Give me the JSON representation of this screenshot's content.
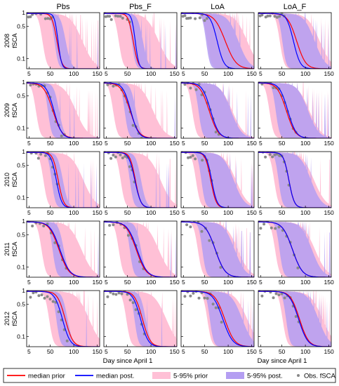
{
  "chart_data": {
    "type": "line",
    "columns": [
      "Pbs",
      "Pbs_F",
      "LoA",
      "LoA_F"
    ],
    "rows": [
      {
        "year": "2008",
        "ylabel": "fSCA"
      },
      {
        "year": "2009",
        "ylabel": "fSCA"
      },
      {
        "year": "2010",
        "ylabel": "fSCA"
      },
      {
        "year": "2011",
        "ylabel": "fSCA"
      },
      {
        "year": "2012",
        "ylabel": "fSCA"
      }
    ],
    "xlabel": "Day since April 1",
    "x_ticks": [
      "5",
      "50",
      "100",
      "150"
    ],
    "y_ticks": [
      "1",
      "0.5",
      "0.1"
    ],
    "y_scale": "log",
    "xlim": [
      0,
      155
    ],
    "ylim": [
      0.06,
      1.0
    ],
    "colors": {
      "prior": "#ff0000",
      "posterior": "#0000ff",
      "prior_band": "#ffc0d6",
      "posterior_band": "#b49ef2",
      "obs": "#888888"
    },
    "panels": [
      {
        "row": 0,
        "col": 0,
        "prior_melt": 58,
        "post_melt": 62,
        "prior_steep": 0.22,
        "post_steep": 0.3,
        "band_prior": "wide",
        "band_post": "narrow",
        "obs_days": [
          4,
          8,
          12,
          16,
          20,
          25,
          30,
          35,
          40,
          45,
          50,
          55
        ]
      },
      {
        "row": 0,
        "col": 1,
        "prior_melt": 56,
        "post_melt": 62,
        "prior_steep": 0.22,
        "post_steep": 0.3,
        "band_prior": "wide",
        "band_post": "narrow",
        "obs_days": [
          4,
          8,
          12,
          16,
          20,
          25,
          30,
          35,
          40,
          45,
          50,
          55
        ]
      },
      {
        "row": 0,
        "col": 2,
        "prior_melt": 80,
        "post_melt": 68,
        "prior_steep": 0.1,
        "post_steep": 0.16,
        "band_prior": "wide",
        "band_post": "wide",
        "obs_days": [
          4,
          8,
          12,
          16,
          20,
          25,
          30,
          35,
          40,
          45,
          50,
          55
        ]
      },
      {
        "row": 0,
        "col": 3,
        "prior_melt": 70,
        "post_melt": 66,
        "prior_steep": 0.12,
        "post_steep": 0.16,
        "band_prior": "wide",
        "band_post": "wide",
        "obs_days": [
          4,
          8,
          12,
          16,
          20,
          25,
          30,
          35,
          40,
          45,
          50,
          55
        ]
      },
      {
        "row": 1,
        "col": 0,
        "prior_melt": 44,
        "post_melt": 48,
        "prior_steep": 0.12,
        "post_steep": 0.14,
        "band_prior": "wide",
        "band_post": "narrow",
        "obs_days": [
          8,
          14,
          20,
          26,
          32,
          38,
          44,
          50,
          56,
          62,
          68,
          74,
          80
        ]
      },
      {
        "row": 1,
        "col": 1,
        "prior_melt": 44,
        "post_melt": 47,
        "prior_steep": 0.12,
        "post_steep": 0.14,
        "band_prior": "wide",
        "band_post": "narrow",
        "obs_days": [
          8,
          14,
          20,
          26,
          32,
          38,
          44,
          50,
          56,
          62,
          68,
          74,
          80
        ]
      },
      {
        "row": 1,
        "col": 2,
        "prior_melt": 48,
        "post_melt": 52,
        "prior_steep": 0.12,
        "post_steep": 0.13,
        "band_prior": "wide",
        "band_post": "wide",
        "obs_days": [
          8,
          14,
          20,
          26,
          32,
          38,
          44,
          50,
          56,
          62,
          68,
          74,
          80
        ]
      },
      {
        "row": 1,
        "col": 3,
        "prior_melt": 48,
        "post_melt": 52,
        "prior_steep": 0.12,
        "post_steep": 0.13,
        "band_prior": "wide",
        "band_post": "wide",
        "obs_days": [
          8,
          14,
          20,
          26,
          32,
          38,
          44,
          50,
          56,
          62,
          68,
          74,
          80
        ]
      },
      {
        "row": 2,
        "col": 0,
        "prior_melt": 60,
        "post_melt": 56,
        "prior_steep": 0.2,
        "post_steep": 0.2,
        "band_prior": "wide",
        "band_post": "narrow",
        "obs_days": [
          10,
          15,
          20,
          25,
          30,
          35,
          40,
          45,
          50,
          55,
          60,
          65
        ]
      },
      {
        "row": 2,
        "col": 1,
        "prior_melt": 60,
        "post_melt": 58,
        "prior_steep": 0.2,
        "post_steep": 0.18,
        "band_prior": "wide",
        "band_post": "narrow",
        "obs_days": [
          10,
          15,
          20,
          25,
          30,
          35,
          40,
          45,
          50,
          55,
          60,
          65
        ]
      },
      {
        "row": 2,
        "col": 2,
        "prior_melt": 56,
        "post_melt": 58,
        "prior_steep": 0.2,
        "post_steep": 0.2,
        "band_prior": "wide",
        "band_post": "wide",
        "obs_days": [
          10,
          15,
          20,
          25,
          30,
          35,
          40,
          45,
          50,
          55,
          60,
          65
        ]
      },
      {
        "row": 2,
        "col": 3,
        "prior_melt": 58,
        "post_melt": 58,
        "prior_steep": 0.2,
        "post_steep": 0.2,
        "band_prior": "wide",
        "band_post": "wide",
        "obs_days": [
          10,
          15,
          20,
          25,
          30,
          35,
          40,
          45,
          50,
          55,
          60,
          65
        ]
      },
      {
        "row": 3,
        "col": 0,
        "prior_melt": 56,
        "post_melt": 58,
        "prior_steep": 0.11,
        "post_steep": 0.11,
        "band_prior": "wide",
        "band_post": "narrow",
        "obs_days": [
          5,
          12,
          20,
          28,
          36,
          44,
          52,
          60,
          68,
          76,
          84
        ]
      },
      {
        "row": 3,
        "col": 1,
        "prior_melt": 56,
        "post_melt": 58,
        "prior_steep": 0.11,
        "post_steep": 0.11,
        "band_prior": "wide",
        "band_post": "narrow",
        "obs_days": [
          5,
          12,
          20,
          28,
          36,
          44,
          52,
          60,
          68,
          76,
          84
        ]
      },
      {
        "row": 3,
        "col": 2,
        "prior_melt": 60,
        "post_melt": 60,
        "prior_steep": 0.11,
        "post_steep": 0.11,
        "band_prior": "wide",
        "band_post": "wide",
        "obs_days": [
          5,
          12,
          20,
          28,
          36,
          44,
          52,
          60,
          68,
          76,
          84
        ]
      },
      {
        "row": 3,
        "col": 3,
        "prior_melt": 60,
        "post_melt": 60,
        "prior_steep": 0.11,
        "post_steep": 0.11,
        "band_prior": "wide",
        "band_post": "wide",
        "obs_days": [
          5,
          12,
          20,
          28,
          36,
          44,
          52,
          60,
          68,
          76,
          84
        ]
      },
      {
        "row": 4,
        "col": 0,
        "prior_melt": 72,
        "post_melt": 66,
        "prior_steep": 0.14,
        "post_steep": 0.14,
        "band_prior": "wide",
        "band_post": "narrow",
        "obs_days": [
          8,
          14,
          20,
          26,
          32,
          38,
          44,
          50,
          56,
          62,
          68,
          74,
          80,
          86
        ]
      },
      {
        "row": 4,
        "col": 1,
        "prior_melt": 72,
        "post_melt": 68,
        "prior_steep": 0.14,
        "post_steep": 0.14,
        "band_prior": "wide",
        "band_post": "narrow",
        "obs_days": [
          8,
          14,
          20,
          26,
          32,
          38,
          44,
          50,
          56,
          62,
          68,
          74,
          80,
          86
        ]
      },
      {
        "row": 4,
        "col": 2,
        "prior_melt": 80,
        "post_melt": 76,
        "prior_steep": 0.11,
        "post_steep": 0.11,
        "band_prior": "wide",
        "band_post": "wide",
        "obs_days": [
          8,
          14,
          20,
          26,
          32,
          38,
          44,
          50,
          56,
          62,
          68,
          74,
          80,
          86
        ]
      },
      {
        "row": 4,
        "col": 3,
        "prior_melt": 76,
        "post_melt": 74,
        "prior_steep": 0.12,
        "post_steep": 0.12,
        "band_prior": "wide",
        "band_post": "wide",
        "obs_days": [
          8,
          14,
          20,
          26,
          32,
          38,
          44,
          50,
          56,
          62,
          68,
          74,
          80,
          86
        ]
      }
    ],
    "legend": {
      "position": "bottom",
      "items": [
        {
          "label": "median prior",
          "kind": "line",
          "color": "#ff0000"
        },
        {
          "label": "median post.",
          "kind": "line",
          "color": "#0000ff"
        },
        {
          "label": "5-95% prior",
          "kind": "patch",
          "color": "#ffc0d6"
        },
        {
          "label": "5-95% post.",
          "kind": "patch",
          "color": "#b49ef2"
        },
        {
          "label": "Obs. fSCA",
          "kind": "marker",
          "color": "#888888"
        }
      ]
    }
  }
}
